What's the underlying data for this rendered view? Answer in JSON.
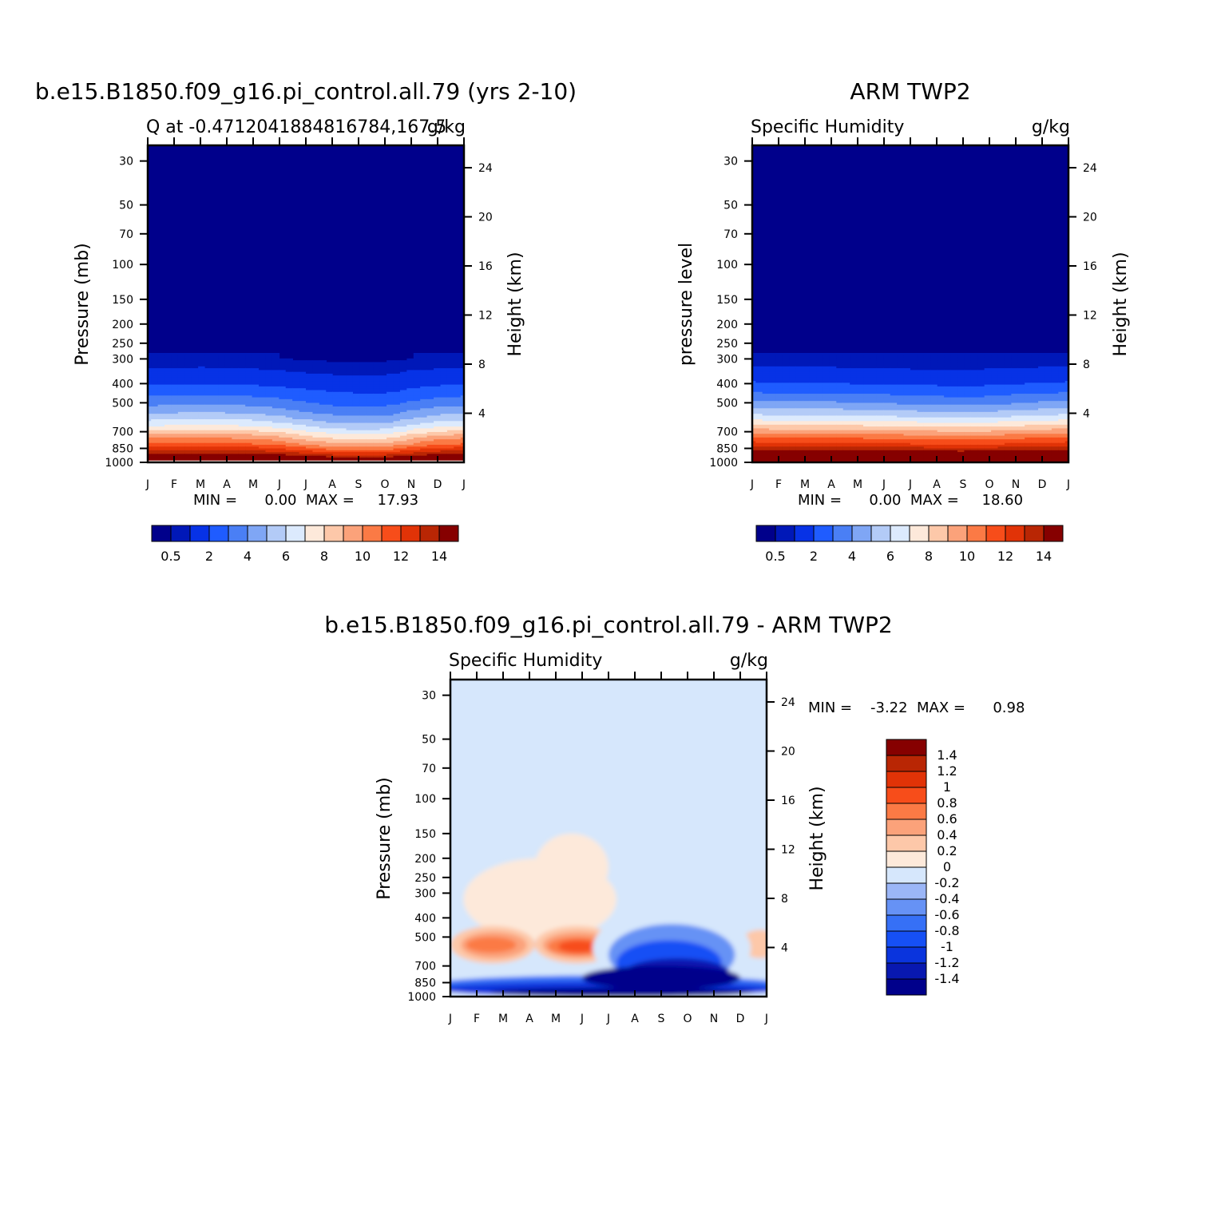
{
  "panels": [
    {
      "id": "model",
      "title": "b.e15.B1850.f09_g16.pi_control.all.79 (yrs 2-10)",
      "subtitle_left": "Q at -0.4712041884816784,167.5",
      "subtitle_right": "g/kg",
      "ylabel": "Pressure (mb)",
      "y2label": "Height (km)",
      "minmax": "MIN =      0.00  MAX =     17.93"
    },
    {
      "id": "obs",
      "title": "ARM TWP2",
      "subtitle_left": "Specific Humidity",
      "subtitle_right": "g/kg",
      "ylabel": "pressure level",
      "y2label": "Height (km)",
      "minmax": "MIN =      0.00  MAX =     18.60"
    },
    {
      "id": "diff",
      "title": "b.e15.B1850.f09_g16.pi_control.all.79 - ARM TWP2",
      "subtitle_left": "Specific Humidity",
      "subtitle_right": "g/kg",
      "ylabel": "Pressure (mb)",
      "y2label": "Height (km)",
      "minmax": "MIN =    -3.22  MAX =      0.98"
    }
  ],
  "chart_data": [
    {
      "type": "heatmap",
      "title": "b.e15.B1850.f09_g16.pi_control.all.79 (yrs 2-10)",
      "subtitle": "Q at -0.4712041884816784,167.5",
      "units": "g/kg",
      "xlabel": "",
      "ylabel": "Pressure (mb)",
      "y2label": "Height (km)",
      "x_ticks": [
        "J",
        "F",
        "M",
        "A",
        "M",
        "J",
        "J",
        "A",
        "S",
        "O",
        "N",
        "D",
        "J"
      ],
      "y_ticks": [
        30,
        50,
        70,
        100,
        150,
        200,
        250,
        300,
        400,
        500,
        700,
        850,
        1000
      ],
      "y2_ticks": [
        24,
        20,
        16,
        12,
        8,
        4
      ],
      "y_scale": "log",
      "ylim": [
        1000,
        25
      ],
      "min": 0.0,
      "max": 17.93,
      "levels": [
        0.5,
        1,
        2,
        3,
        4,
        5,
        6,
        7,
        8,
        9,
        10,
        11,
        12,
        13,
        14
      ],
      "colorbar_labels": [
        "0.5",
        "2",
        "4",
        "6",
        "8",
        "10",
        "12",
        "14"
      ],
      "approx_profile": {
        "pressure_mb": [
          1000,
          950,
          900,
          850,
          800,
          750,
          700,
          650,
          600,
          550,
          500,
          450,
          400,
          350,
          300
        ],
        "months": [
          "J",
          "F",
          "M",
          "A",
          "M",
          "J",
          "J",
          "A",
          "S",
          "O",
          "N",
          "D",
          "J"
        ],
        "q_gkg_by_month": [
          [
            17.5,
            15.5,
            14,
            12.5,
            11,
            10,
            8.5,
            7,
            5.8,
            4.7,
            3.7,
            2.8,
            1.9,
            1.2,
            0.6
          ],
          [
            17.5,
            15.6,
            14.1,
            12.6,
            11.1,
            10.1,
            8.6,
            7.1,
            5.9,
            4.8,
            3.8,
            2.9,
            2,
            1.2,
            0.6
          ],
          [
            17.5,
            15.6,
            14.2,
            12.7,
            11.2,
            10.2,
            8.7,
            7.2,
            6,
            4.9,
            3.9,
            2.9,
            2,
            1.3,
            0.6
          ],
          [
            17.6,
            15.7,
            14.2,
            12.6,
            11.1,
            10,
            8.5,
            7.1,
            5.9,
            4.8,
            3.8,
            2.8,
            2,
            1.2,
            0.6
          ],
          [
            17.6,
            15.6,
            14.1,
            12.5,
            11,
            9.9,
            8.4,
            7,
            5.8,
            4.7,
            3.7,
            2.8,
            1.9,
            1.2,
            0.55
          ],
          [
            17.6,
            15.5,
            13.8,
            12.1,
            10.6,
            9.4,
            8,
            6.6,
            5.4,
            4.4,
            3.5,
            2.6,
            1.8,
            1.1,
            0.5
          ],
          [
            17.7,
            15.2,
            13.2,
            11.4,
            9.8,
            8.6,
            7.3,
            6,
            4.9,
            4,
            3.1,
            2.4,
            1.6,
            1,
            0.45
          ],
          [
            17.8,
            14.8,
            12.6,
            10.8,
            9.2,
            8,
            6.7,
            5.5,
            4.5,
            3.6,
            2.8,
            2.2,
            1.5,
            0.9,
            0.4
          ],
          [
            17.8,
            14.6,
            12.4,
            10.6,
            9,
            7.8,
            6.5,
            5.3,
            4.3,
            3.5,
            2.7,
            2.1,
            1.4,
            0.9,
            0.4
          ],
          [
            17.8,
            14.7,
            12.5,
            10.7,
            9.1,
            7.9,
            6.6,
            5.4,
            4.4,
            3.5,
            2.7,
            2.1,
            1.4,
            0.9,
            0.4
          ],
          [
            17.7,
            15.2,
            13.3,
            11.6,
            10,
            8.9,
            7.5,
            6.2,
            5.1,
            4.1,
            3.2,
            2.4,
            1.7,
            1.1,
            0.5
          ],
          [
            17.6,
            15.5,
            13.9,
            12.3,
            10.8,
            9.7,
            8.2,
            6.8,
            5.6,
            4.6,
            3.6,
            2.7,
            1.9,
            1.2,
            0.55
          ],
          [
            17.5,
            15.5,
            14,
            12.5,
            11,
            10,
            8.5,
            7,
            5.8,
            4.7,
            3.7,
            2.8,
            1.9,
            1.2,
            0.6
          ]
        ]
      }
    },
    {
      "type": "heatmap",
      "title": "ARM TWP2",
      "subtitle": "Specific Humidity",
      "units": "g/kg",
      "xlabel": "",
      "ylabel": "pressure level",
      "y2label": "Height (km)",
      "x_ticks": [
        "J",
        "F",
        "M",
        "A",
        "M",
        "J",
        "J",
        "A",
        "S",
        "O",
        "N",
        "D",
        "J"
      ],
      "y_ticks": [
        30,
        50,
        70,
        100,
        150,
        200,
        250,
        300,
        400,
        500,
        700,
        850,
        1000
      ],
      "y2_ticks": [
        24,
        20,
        16,
        12,
        8,
        4
      ],
      "y_scale": "log",
      "ylim": [
        1000,
        25
      ],
      "min": 0.0,
      "max": 18.6,
      "levels": [
        0.5,
        1,
        2,
        3,
        4,
        5,
        6,
        7,
        8,
        9,
        10,
        11,
        12,
        13,
        14
      ],
      "colorbar_labels": [
        "0.5",
        "2",
        "4",
        "6",
        "8",
        "10",
        "12",
        "14"
      ],
      "approx_profile": {
        "pressure_mb": [
          1000,
          950,
          900,
          850,
          800,
          750,
          700,
          650,
          600,
          550,
          500,
          450,
          400,
          350,
          300
        ],
        "months": [
          "J",
          "F",
          "M",
          "A",
          "M",
          "J",
          "J",
          "A",
          "S",
          "O",
          "N",
          "D",
          "J"
        ],
        "q_gkg_by_month": [
          [
            18.5,
            16.8,
            15.3,
            13.8,
            12.4,
            11.2,
            9.8,
            8.3,
            6.8,
            5.5,
            4.3,
            3.2,
            2.2,
            1.3,
            0.6
          ],
          [
            18.5,
            16.8,
            15.2,
            13.7,
            12.3,
            11.1,
            9.7,
            8.2,
            6.7,
            5.4,
            4.2,
            3.1,
            2.1,
            1.3,
            0.6
          ],
          [
            18.6,
            16.9,
            15.3,
            13.8,
            12.4,
            11.1,
            9.7,
            8.2,
            6.7,
            5.4,
            4.2,
            3.1,
            2.1,
            1.3,
            0.6
          ],
          [
            18.6,
            16.9,
            15.3,
            13.8,
            12.4,
            11.1,
            9.7,
            8.2,
            6.7,
            5.4,
            4.2,
            3.1,
            2.1,
            1.3,
            0.6
          ],
          [
            18.5,
            16.8,
            15.2,
            13.7,
            12.2,
            11,
            9.6,
            8.1,
            6.6,
            5.3,
            4.1,
            3,
            2,
            1.2,
            0.55
          ],
          [
            18.4,
            16.7,
            15.1,
            13.6,
            12.1,
            10.9,
            9.5,
            8,
            6.5,
            5.2,
            4,
            3,
            2,
            1.2,
            0.55
          ],
          [
            18.4,
            16.6,
            15,
            13.5,
            12,
            10.8,
            9.4,
            7.9,
            6.4,
            5.1,
            3.9,
            2.9,
            1.9,
            1.2,
            0.5
          ],
          [
            18.3,
            16.5,
            14.9,
            13.4,
            11.9,
            10.7,
            9.3,
            7.8,
            6.3,
            5,
            3.8,
            2.8,
            1.9,
            1.1,
            0.5
          ],
          [
            18.3,
            16.5,
            14.9,
            13.3,
            11.8,
            10.6,
            9.2,
            7.7,
            6.2,
            4.9,
            3.7,
            2.7,
            1.8,
            1.1,
            0.5
          ],
          [
            18.4,
            16.6,
            15,
            13.4,
            11.9,
            10.7,
            9.3,
            7.8,
            6.3,
            5,
            3.8,
            2.8,
            1.9,
            1.2,
            0.5
          ],
          [
            18.4,
            16.7,
            15.1,
            13.6,
            12.1,
            10.9,
            9.5,
            8,
            6.5,
            5.2,
            4,
            3,
            2,
            1.2,
            0.55
          ],
          [
            18.5,
            16.8,
            15.2,
            13.7,
            12.3,
            11.1,
            9.7,
            8.2,
            6.7,
            5.4,
            4.2,
            3.1,
            2.1,
            1.3,
            0.6
          ],
          [
            18.5,
            16.8,
            15.3,
            13.8,
            12.4,
            11.2,
            9.8,
            8.3,
            6.8,
            5.5,
            4.3,
            3.2,
            2.2,
            1.3,
            0.6
          ]
        ]
      }
    },
    {
      "type": "heatmap",
      "title": "b.e15.B1850.f09_g16.pi_control.all.79 - ARM TWP2",
      "subtitle": "Specific Humidity",
      "units": "g/kg",
      "xlabel": "",
      "ylabel": "Pressure (mb)",
      "y2label": "Height (km)",
      "x_ticks": [
        "J",
        "F",
        "M",
        "A",
        "M",
        "J",
        "J",
        "A",
        "S",
        "O",
        "N",
        "D",
        "J"
      ],
      "y_ticks": [
        30,
        50,
        70,
        100,
        150,
        200,
        250,
        300,
        400,
        500,
        700,
        850,
        1000
      ],
      "y2_ticks": [
        24,
        20,
        16,
        12,
        8,
        4
      ],
      "y_scale": "log",
      "ylim": [
        1000,
        25
      ],
      "min": -3.22,
      "max": 0.98,
      "levels": [
        -1.4,
        -1.2,
        -1,
        -0.8,
        -0.6,
        -0.4,
        -0.2,
        0,
        0.2,
        0.4,
        0.6,
        0.8,
        1,
        1.2,
        1.4
      ],
      "colorbar_labels": [
        "1.4",
        "1.2",
        "1",
        "0.8",
        "0.6",
        "0.4",
        "0.2",
        "0",
        "-0.2",
        "-0.4",
        "-0.6",
        "-0.8",
        "-1",
        "-1.2",
        "-1.4"
      ],
      "features": [
        {
          "kind": "positive core",
          "months": "F-M",
          "pressure_mb": [
            450,
            650
          ],
          "value_gkg": 0.7
        },
        {
          "kind": "positive core",
          "months": "M-J",
          "pressure_mb": [
            450,
            650
          ],
          "value_gkg": 0.8
        },
        {
          "kind": "weak positive",
          "months": "F-J",
          "pressure_mb": [
            170,
            450
          ],
          "value_gkg": 0.1
        },
        {
          "kind": "weak positive",
          "months": "D-J",
          "pressure_mb": [
            480,
            620
          ],
          "value_gkg": 0.3
        },
        {
          "kind": "negative core",
          "months": "J-N",
          "pressure_mb": [
            650,
            900
          ],
          "value_gkg": -1.4
        },
        {
          "kind": "negative band",
          "months": "J-D",
          "pressure_mb": [
            800,
            1000
          ],
          "value_gkg": -1.0
        }
      ]
    }
  ],
  "colors": {
    "abs_palette": [
      "#00008b",
      "#0018b8",
      "#0732e6",
      "#1f5cff",
      "#4a7ff5",
      "#7fa6f5",
      "#b3cbf7",
      "#dceafd",
      "#fde9da",
      "#fdc8a9",
      "#fba27a",
      "#fb7a45",
      "#f74d1a",
      "#e13307",
      "#b92604",
      "#860000"
    ],
    "diff_palette": [
      "#00008b",
      "#0818b0",
      "#0a34dd",
      "#1650f5",
      "#3670f6",
      "#6692f5",
      "#9bb6f7",
      "#d6e7fc",
      "#fde9da",
      "#fdc8a9",
      "#fba27a",
      "#fb7a45",
      "#f74d1a",
      "#e13307",
      "#b92604",
      "#860000"
    ]
  }
}
